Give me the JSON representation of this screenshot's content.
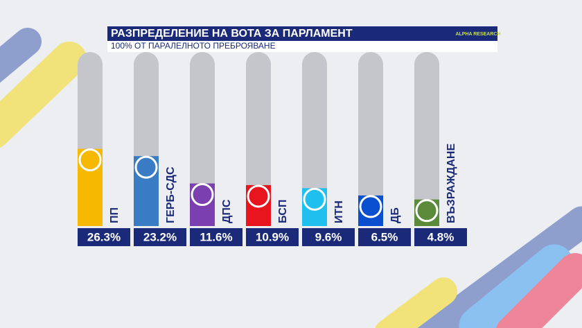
{
  "chart_data": {
    "type": "bar",
    "title": "РАЗПРЕДЕЛЕНИЕ НА ВОТА ЗА ПАРЛАМЕНТ",
    "subtitle": "100% ОТ ПАРАЛЕЛНОТО ПРЕБРОЯВАНЕ",
    "logo": "ALPHA RESEARCH",
    "categories": [
      "ПП",
      "ГЕРБ-СДС",
      "ДПС",
      "БСП",
      "ИТН",
      "ДБ",
      "ВЪЗРАЖДАНЕ"
    ],
    "values": [
      26.3,
      23.2,
      11.6,
      10.9,
      9.6,
      6.5,
      4.8
    ],
    "value_labels": [
      "26.3%",
      "23.2%",
      "11.6%",
      "10.9%",
      "9.6%",
      "6.5%",
      "4.8%"
    ],
    "colors": [
      "#f6b800",
      "#3a7cc4",
      "#7b3fb0",
      "#e8141e",
      "#1fc0f0",
      "#0a4fd0",
      "#5a8a3a"
    ]
  }
}
